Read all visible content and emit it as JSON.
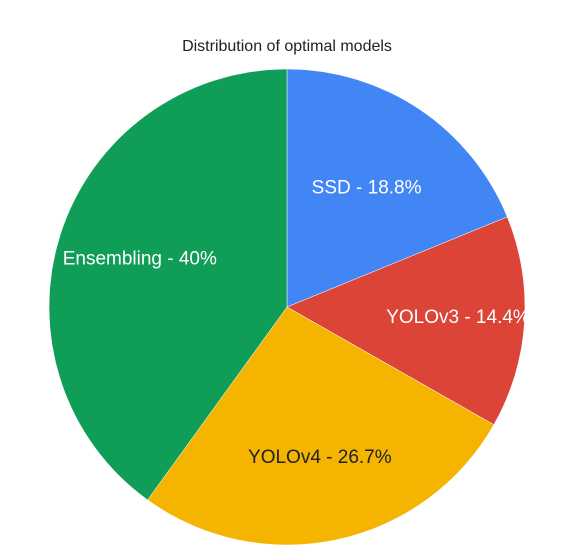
{
  "chart_data": {
    "type": "pie",
    "title": "Distribution of optimal models",
    "slices": [
      {
        "label": "SSD - 18.8%",
        "value": 18.8,
        "color": "#4285f4",
        "text_color": "#ffffff"
      },
      {
        "label": "YOLOv3 - 14.4%",
        "value": 14.4,
        "color": "#db4437",
        "text_color": "#ffffff"
      },
      {
        "label": "YOLOv4 - 26.7%",
        "value": 26.7,
        "color": "#f4b400",
        "text_color": "#202124"
      },
      {
        "label": "Ensembling - 40%",
        "value": 40,
        "color": "#0f9d58",
        "text_color": "#ffffff"
      }
    ],
    "start_angle_deg": 0,
    "direction": "clockwise",
    "legend": "none"
  }
}
